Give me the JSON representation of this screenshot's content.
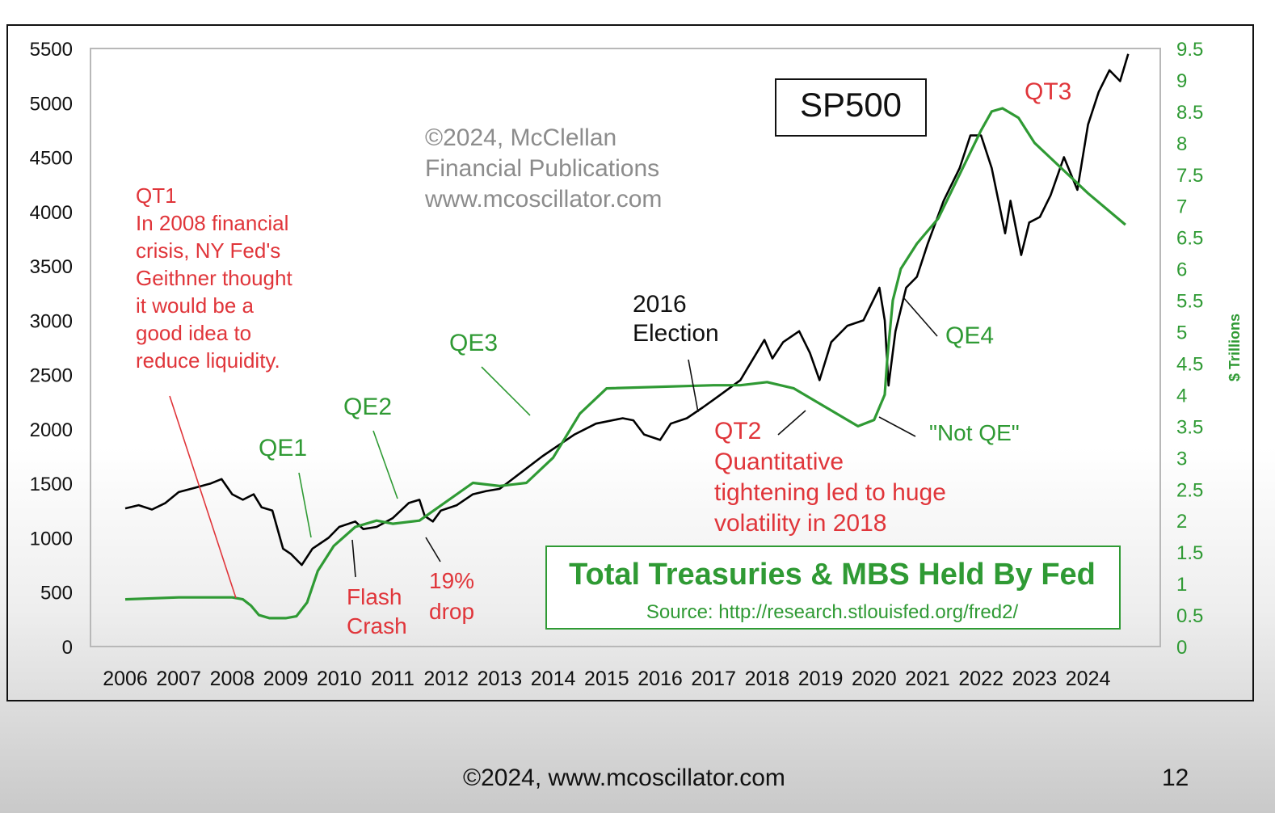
{
  "footer": {
    "copyright": "©2024,  www.mcoscillator.com",
    "page_number": "12"
  },
  "chart_data": {
    "type": "line",
    "title": "SP500",
    "watermark": [
      "©2024, McClellan",
      "Financial Publications",
      "www.mcoscillator.com"
    ],
    "x_ticks": [
      "2006",
      "2007",
      "2008",
      "2009",
      "2010",
      "2011",
      "2012",
      "2013",
      "2014",
      "2015",
      "2016",
      "2017",
      "2018",
      "2019",
      "2020",
      "2021",
      "2022",
      "2023",
      "2024"
    ],
    "xlim": [
      2006,
      2025.9
    ],
    "left_axis": {
      "ticks": [
        "5500",
        "5000",
        "4500",
        "4000",
        "3500",
        "3000",
        "2500",
        "2000",
        "1500",
        "1000",
        "500",
        "0"
      ],
      "ylim": [
        0,
        5500
      ]
    },
    "right_axis": {
      "label": "$ Trillions",
      "ticks": [
        "9.5",
        "9",
        "8.5",
        "8",
        "7.5",
        "7",
        "6.5",
        "6",
        "5.5",
        "5",
        "4.5",
        "4",
        "3.5",
        "3",
        "2.5",
        "2",
        "1.5",
        "1",
        "0.5",
        "0"
      ],
      "ylim": [
        0,
        9.5
      ],
      "color": "#2f9a34"
    },
    "series": [
      {
        "axis": "left",
        "color": "#000000",
        "x": [
          2006.0,
          2006.25,
          2006.5,
          2006.75,
          2007.0,
          2007.3,
          2007.6,
          2007.8,
          2008.0,
          2008.2,
          2008.4,
          2008.55,
          2008.75,
          2008.95,
          2009.1,
          2009.3,
          2009.5,
          2009.8,
          2010.0,
          2010.3,
          2010.45,
          2010.7,
          2011.0,
          2011.3,
          2011.5,
          2011.6,
          2011.75,
          2011.9,
          2012.2,
          2012.5,
          2012.75,
          2013.0,
          2013.4,
          2013.8,
          2014.1,
          2014.4,
          2014.8,
          2015.3,
          2015.5,
          2015.7,
          2016.0,
          2016.2,
          2016.5,
          2016.8,
          2017.0,
          2017.5,
          2017.95,
          2018.1,
          2018.3,
          2018.6,
          2018.8,
          2018.98,
          2019.2,
          2019.5,
          2019.8,
          2020.1,
          2020.2,
          2020.27,
          2020.4,
          2020.6,
          2020.8,
          2021.0,
          2021.3,
          2021.6,
          2021.8,
          2022.0,
          2022.2,
          2022.45,
          2022.55,
          2022.75,
          2022.9,
          2023.1,
          2023.3,
          2023.55,
          2023.8,
          2024.0,
          2024.2,
          2024.4,
          2024.6,
          2024.75
        ],
        "values": [
          1270,
          1300,
          1260,
          1320,
          1420,
          1460,
          1500,
          1540,
          1400,
          1350,
          1400,
          1280,
          1250,
          900,
          850,
          750,
          900,
          1000,
          1100,
          1150,
          1080,
          1100,
          1180,
          1320,
          1350,
          1200,
          1150,
          1250,
          1300,
          1400,
          1430,
          1450,
          1600,
          1750,
          1850,
          1950,
          2050,
          2100,
          2080,
          1950,
          1900,
          2050,
          2100,
          2200,
          2270,
          2450,
          2820,
          2650,
          2800,
          2900,
          2700,
          2450,
          2800,
          2950,
          3000,
          3300,
          3000,
          2400,
          2900,
          3300,
          3400,
          3700,
          4100,
          4400,
          4700,
          4700,
          4400,
          3800,
          4100,
          3600,
          3900,
          3950,
          4150,
          4500,
          4200,
          4800,
          5100,
          5300,
          5200,
          5450
        ]
      },
      {
        "axis": "right",
        "color": "#2f9a34",
        "x": [
          2006.0,
          2007.0,
          2008.0,
          2008.2,
          2008.35,
          2008.5,
          2008.7,
          2009.0,
          2009.2,
          2009.4,
          2009.6,
          2009.9,
          2010.3,
          2010.7,
          2011.0,
          2011.5,
          2012.5,
          2013.0,
          2013.5,
          2014.0,
          2014.5,
          2015.0,
          2017.0,
          2017.5,
          2018.0,
          2018.5,
          2019.0,
          2019.5,
          2019.7,
          2020.0,
          2020.2,
          2020.25,
          2020.35,
          2020.5,
          2020.8,
          2021.2,
          2021.6,
          2022.0,
          2022.2,
          2022.4,
          2022.7,
          2023.0,
          2023.5,
          2024.0,
          2024.7
        ],
        "values": [
          0.75,
          0.78,
          0.78,
          0.75,
          0.65,
          0.5,
          0.45,
          0.45,
          0.48,
          0.7,
          1.2,
          1.6,
          1.9,
          2.0,
          1.95,
          2.0,
          2.6,
          2.55,
          2.6,
          3.0,
          3.7,
          4.1,
          4.15,
          4.15,
          4.2,
          4.1,
          3.85,
          3.6,
          3.5,
          3.6,
          4.0,
          4.6,
          5.5,
          6.0,
          6.4,
          6.8,
          7.5,
          8.2,
          8.5,
          8.55,
          8.4,
          8.0,
          7.6,
          7.2,
          6.7
        ]
      }
    ],
    "annotations": {
      "qt1": [
        "QT1",
        "In 2008 financial",
        "crisis, NY Fed's",
        "Geithner thought",
        "it would be a",
        "good idea to",
        "reduce liquidity."
      ],
      "qe1": "QE1",
      "qe2": "QE2",
      "qe3": "QE3",
      "qe4": "QE4",
      "flash_crash": [
        "Flash",
        "Crash"
      ],
      "drop": [
        "19%",
        "drop"
      ],
      "election": [
        "2016",
        "Election"
      ],
      "qt2": [
        "QT2",
        "Quantitative",
        "tightening led to huge",
        "volatility in 2018"
      ],
      "not_qe": "\"Not QE\"",
      "qt3": "QT3"
    },
    "legend_box": {
      "title": "Total Treasuries & MBS Held By Fed",
      "source": "Source: http://research.stlouisfed.org/fred2/"
    },
    "colors": {
      "red_text": "#e0353a",
      "green": "#2f9a34",
      "grid_border": "#b8b8b8"
    }
  }
}
